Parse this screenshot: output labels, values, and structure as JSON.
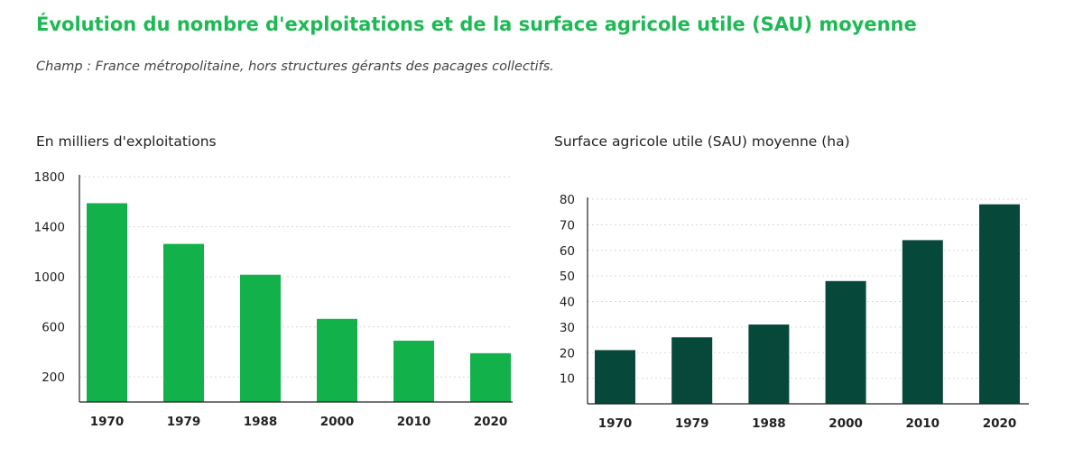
{
  "header": {
    "title": "Évolution du nombre d'exploitations et de la surface agricole utile (SAU) moyenne",
    "subtitle": "Champ : France métropolitaine, hors structures gérants des pacages collectifs."
  },
  "colors": {
    "title": "#1db954",
    "left_bars": "#12b14a",
    "right_bars": "#06483a",
    "grid": "#d9d9d9"
  },
  "chart_data": [
    {
      "type": "bar",
      "title": "En milliers d'exploitations",
      "categories": [
        "1970",
        "1979",
        "1988",
        "2000",
        "2010",
        "2020"
      ],
      "values": [
        1588,
        1263,
        1017,
        664,
        490,
        390
      ],
      "ylim": [
        0,
        1800
      ],
      "yticks": [
        200,
        600,
        1000,
        1400,
        1800
      ],
      "ytick_labels": [
        "200",
        "600",
        "1000",
        "1400",
        "1800"
      ],
      "grid": true,
      "color": "#12b14a"
    },
    {
      "type": "bar",
      "title": "Surface agricole utile (SAU) moyenne (ha)",
      "categories": [
        "1970",
        "1979",
        "1988",
        "2000",
        "2010",
        "2020"
      ],
      "values": [
        21,
        26,
        31,
        48,
        64,
        78
      ],
      "ylim": [
        0,
        80
      ],
      "yticks": [
        10,
        20,
        30,
        40,
        50,
        60,
        70,
        80
      ],
      "ytick_labels": [
        "10",
        "20",
        "30",
        "40",
        "50",
        "60",
        "70",
        "80"
      ],
      "grid": true,
      "color": "#06483a"
    }
  ]
}
